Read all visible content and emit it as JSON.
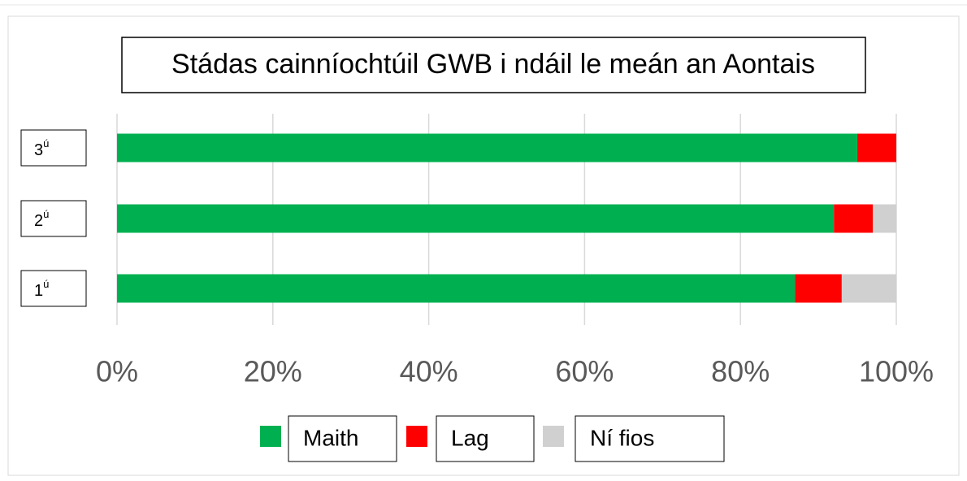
{
  "chart_data": {
    "type": "stacked-bar-horizontal",
    "title": "Stádas cainníochtúil GWB i ndáil le meán an Aontais",
    "categories": [
      "3ú",
      "2ú",
      "1ú"
    ],
    "series": [
      {
        "name": "Maith",
        "color": "#00b050",
        "values": [
          95,
          92,
          87
        ]
      },
      {
        "name": "Lag",
        "color": "#ff0000",
        "values": [
          5,
          5,
          6
        ]
      },
      {
        "name": "Ní fios",
        "color": "#d0d0d0",
        "values": [
          0,
          3,
          7
        ]
      }
    ],
    "xlim": [
      0,
      100
    ],
    "xticks": [
      {
        "value": 0,
        "label": "0%"
      },
      {
        "value": 20,
        "label": "20%"
      },
      {
        "value": 40,
        "label": "40%"
      },
      {
        "value": 60,
        "label": "60%"
      },
      {
        "value": 80,
        "label": "80%"
      },
      {
        "value": 100,
        "label": "100%"
      }
    ],
    "grid": true,
    "legend": "bottom"
  }
}
